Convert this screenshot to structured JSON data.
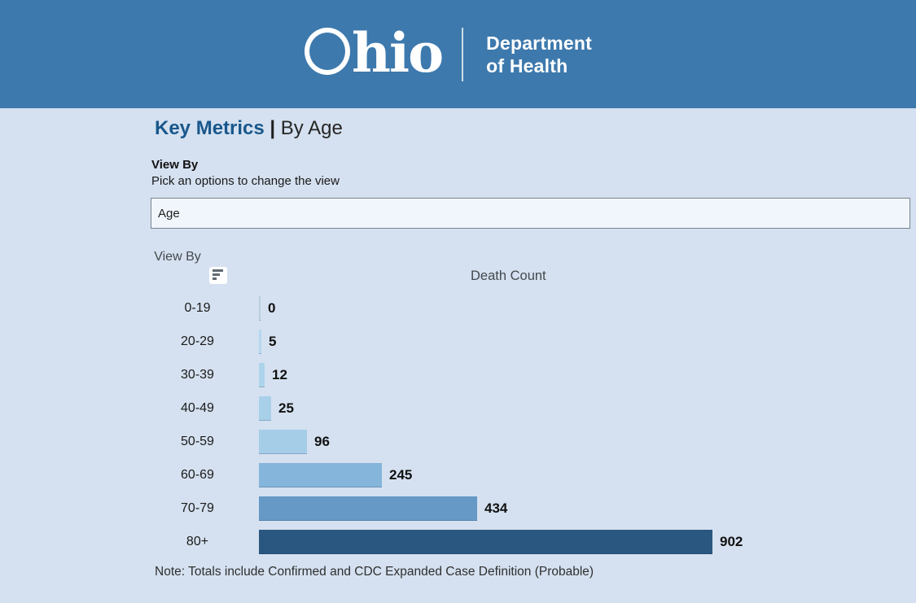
{
  "header": {
    "brand_circle": "O",
    "brand_rest": "hio",
    "dept_line1": "Department",
    "dept_line2": "of Health"
  },
  "page": {
    "title_primary": "Key Metrics",
    "title_separator": "|",
    "title_secondary": "By Age"
  },
  "view_by": {
    "label": "View By",
    "hint": "Pick an options to change the view",
    "selected_value": "Age"
  },
  "chart_data": {
    "type": "bar",
    "orientation": "horizontal",
    "column_header": "View By",
    "value_header": "Death Count",
    "categories": [
      "0-19",
      "20-29",
      "30-39",
      "40-49",
      "50-59",
      "60-69",
      "70-79",
      "80+"
    ],
    "values": [
      0,
      5,
      12,
      25,
      96,
      245,
      434,
      902
    ],
    "bar_colors": [
      "#b9cfe0",
      "#b4d8ef",
      "#aed4ec",
      "#a9d0e9",
      "#a5cde8",
      "#85b5da",
      "#6699c6",
      "#2a577f"
    ],
    "xlim": [
      0,
      902
    ],
    "legend": "none",
    "grid": false,
    "note": "Note: Totals include Confirmed and CDC Expanded Case Definition (Probable)"
  },
  "colors": {
    "header_bg": "#3d79ad",
    "page_bg": "#d5e1f0",
    "title_accent": "#19578c",
    "bar_max": "#2a577f",
    "bar_min": "#b4d8ef"
  }
}
